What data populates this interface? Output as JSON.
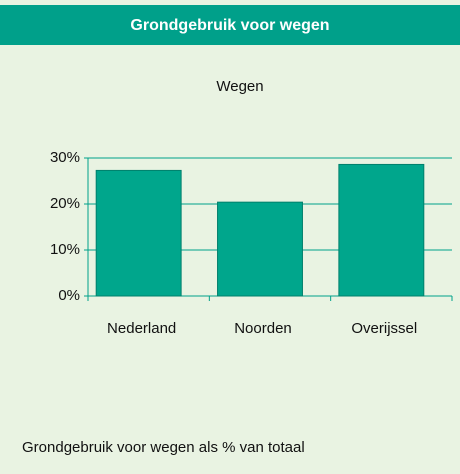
{
  "header": {
    "title": "Grondgebruik voor wegen"
  },
  "chart_data": {
    "type": "bar",
    "title": "Wegen",
    "categories": [
      "Nederland",
      "Noorden",
      "Overijssel"
    ],
    "values": [
      27.3,
      20.4,
      28.6
    ],
    "color": "#00a68c",
    "ylim": [
      0,
      30
    ],
    "yticks": [
      {
        "value": 0,
        "label": "0%"
      },
      {
        "value": 10,
        "label": "10%"
      },
      {
        "value": 20,
        "label": "20%"
      },
      {
        "value": 30,
        "label": "30%"
      }
    ],
    "grid": true
  },
  "footnote": "Grondgebruik voor wegen als % van totaal"
}
